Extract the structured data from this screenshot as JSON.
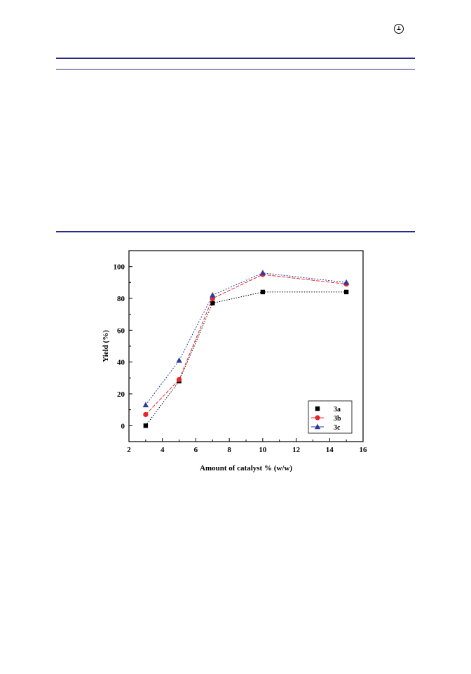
{
  "chart_data": {
    "type": "line",
    "title": "",
    "xlabel": "Amount of catalyst % (w/w)",
    "ylabel": "Yield (%)",
    "xlim": [
      2,
      16
    ],
    "ylim": [
      -10,
      110
    ],
    "xticks": [
      2,
      4,
      6,
      8,
      10,
      12,
      14,
      16
    ],
    "yticks": [
      0,
      20,
      40,
      60,
      80,
      100
    ],
    "grid": false,
    "legend_position": "bottom-right",
    "x": [
      3,
      5,
      7,
      10,
      15
    ],
    "series": [
      {
        "name": "3a",
        "values": [
          0,
          28,
          77,
          84,
          84
        ],
        "color": "#000000",
        "marker": "square"
      },
      {
        "name": "3b",
        "values": [
          7,
          29,
          80,
          95,
          89
        ],
        "color": "#e8252b",
        "marker": "circle"
      },
      {
        "name": "3c",
        "values": [
          13,
          41,
          82,
          96,
          90
        ],
        "color": "#2b3d9a",
        "marker": "triangle"
      }
    ]
  },
  "icons": {
    "logo": "publisher-logo-icon"
  }
}
